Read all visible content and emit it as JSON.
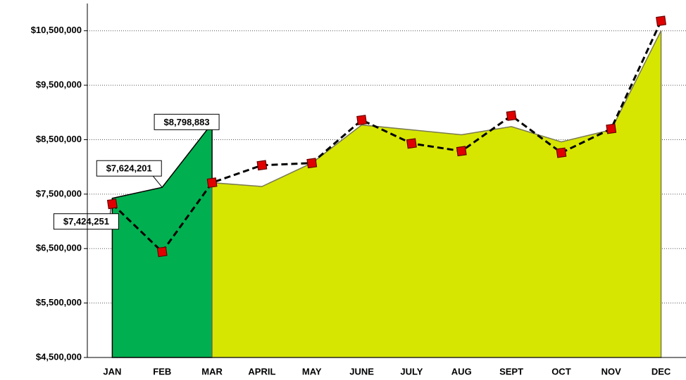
{
  "chart_data": {
    "type": "area",
    "categories": [
      "JAN",
      "FEB",
      "MAR",
      "APRIL",
      "MAY",
      "JUNE",
      "JULY",
      "AUG",
      "SEPT",
      "OCT",
      "NOV",
      "DEC"
    ],
    "series": [
      {
        "kind": "area",
        "color": "#00b050",
        "values": [
          7424251,
          7624201,
          8798883,
          null,
          null,
          null,
          null,
          null,
          null,
          null,
          null,
          null
        ],
        "value_labels": [
          "$7,424,251",
          "$7,624,201",
          "$8,798,883",
          null,
          null,
          null,
          null,
          null,
          null,
          null,
          null,
          null
        ]
      },
      {
        "kind": "area",
        "color": "#d7e600",
        "values": [
          null,
          null,
          7710000,
          7640000,
          8070000,
          8770000,
          8680000,
          8590000,
          8740000,
          8460000,
          8680000,
          10500000
        ]
      },
      {
        "kind": "line",
        "color": "#000000",
        "marker_color": "#e00000",
        "dashed": true,
        "values": [
          7320000,
          6440000,
          7710000,
          8030000,
          8070000,
          8860000,
          8430000,
          8290000,
          8940000,
          8260000,
          8700000,
          10680000
        ]
      }
    ],
    "ylim": [
      4500000,
      11000000
    ],
    "yticks": [
      {
        "value": 4500000,
        "label": "$4,500,000"
      },
      {
        "value": 5500000,
        "label": "$5,500,000"
      },
      {
        "value": 6500000,
        "label": "$6,500,000"
      },
      {
        "value": 7500000,
        "label": "$7,500,000"
      },
      {
        "value": 8500000,
        "label": "$8,500,000"
      },
      {
        "value": 9500000,
        "label": "$9,500,000"
      },
      {
        "value": 10500000,
        "label": "$10,500,000"
      }
    ],
    "grid": true
  }
}
